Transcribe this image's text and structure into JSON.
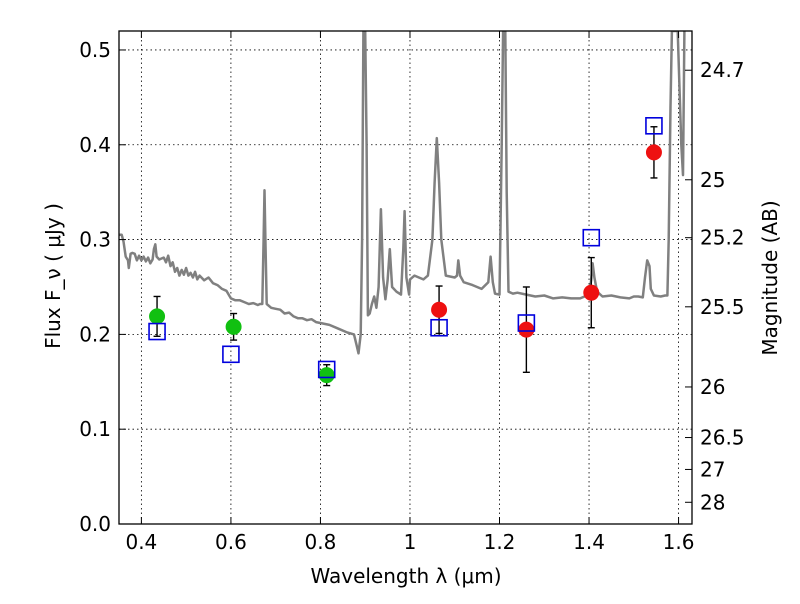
{
  "chart_data": {
    "type": "scatter",
    "xlabel": "Wavelength  λ (μm)",
    "ylabel": "Flux  F_ν  ( μJy )",
    "ylabel_right": "Magnitude (AB)",
    "xlim": [
      0.35,
      1.63
    ],
    "ylim": [
      0.0,
      0.52
    ],
    "grid": true,
    "x_ticks": [
      {
        "value": 0.4,
        "label": "0.4"
      },
      {
        "value": 0.6,
        "label": "0.6"
      },
      {
        "value": 0.8,
        "label": "0.8"
      },
      {
        "value": 1.0,
        "label": "1"
      },
      {
        "value": 1.2,
        "label": "1.2"
      },
      {
        "value": 1.4,
        "label": "1.4"
      },
      {
        "value": 1.6,
        "label": "1.6"
      }
    ],
    "y_ticks": [
      {
        "value": 0.0,
        "label": "0.0"
      },
      {
        "value": 0.1,
        "label": "0.1"
      },
      {
        "value": 0.2,
        "label": "0.2"
      },
      {
        "value": 0.3,
        "label": "0.3"
      },
      {
        "value": 0.4,
        "label": "0.4"
      },
      {
        "value": 0.5,
        "label": "0.5"
      }
    ],
    "right_ticks": [
      {
        "value": 24.7,
        "label": "24.7"
      },
      {
        "value": 25,
        "label": "25"
      },
      {
        "value": 25.2,
        "label": "25.2"
      },
      {
        "value": 25.5,
        "label": "25.5"
      },
      {
        "value": 26,
        "label": "26"
      },
      {
        "value": 26.5,
        "label": "26.5"
      },
      {
        "value": 27,
        "label": "27"
      },
      {
        "value": 28,
        "label": "28"
      }
    ],
    "sed_model": {
      "color": "#808080",
      "points": [
        [
          0.35,
          0.305
        ],
        [
          0.356,
          0.305
        ],
        [
          0.36,
          0.298
        ],
        [
          0.365,
          0.282
        ],
        [
          0.37,
          0.278
        ],
        [
          0.372,
          0.27
        ],
        [
          0.376,
          0.285
        ],
        [
          0.38,
          0.286
        ],
        [
          0.385,
          0.285
        ],
        [
          0.39,
          0.278
        ],
        [
          0.395,
          0.283
        ],
        [
          0.4,
          0.278
        ],
        [
          0.405,
          0.282
        ],
        [
          0.41,
          0.277
        ],
        [
          0.415,
          0.281
        ],
        [
          0.42,
          0.275
        ],
        [
          0.425,
          0.279
        ],
        [
          0.428,
          0.29
        ],
        [
          0.431,
          0.295
        ],
        [
          0.434,
          0.282
        ],
        [
          0.44,
          0.279
        ],
        [
          0.445,
          0.28
        ],
        [
          0.45,
          0.281
        ],
        [
          0.455,
          0.276
        ],
        [
          0.46,
          0.283
        ],
        [
          0.465,
          0.272
        ],
        [
          0.47,
          0.276
        ],
        [
          0.475,
          0.266
        ],
        [
          0.48,
          0.27
        ],
        [
          0.485,
          0.262
        ],
        [
          0.49,
          0.268
        ],
        [
          0.495,
          0.263
        ],
        [
          0.5,
          0.27
        ],
        [
          0.505,
          0.262
        ],
        [
          0.51,
          0.265
        ],
        [
          0.515,
          0.26
        ],
        [
          0.52,
          0.266
        ],
        [
          0.525,
          0.258
        ],
        [
          0.53,
          0.262
        ],
        [
          0.54,
          0.257
        ],
        [
          0.55,
          0.26
        ],
        [
          0.56,
          0.254
        ],
        [
          0.57,
          0.252
        ],
        [
          0.58,
          0.248
        ],
        [
          0.59,
          0.246
        ],
        [
          0.6,
          0.238
        ],
        [
          0.61,
          0.236
        ],
        [
          0.62,
          0.236
        ],
        [
          0.63,
          0.234
        ],
        [
          0.64,
          0.232
        ],
        [
          0.65,
          0.233
        ],
        [
          0.66,
          0.231
        ],
        [
          0.665,
          0.232
        ],
        [
          0.67,
          0.232
        ],
        [
          0.673,
          0.3
        ],
        [
          0.675,
          0.352
        ],
        [
          0.677,
          0.3
        ],
        [
          0.68,
          0.232
        ],
        [
          0.69,
          0.228
        ],
        [
          0.7,
          0.227
        ],
        [
          0.71,
          0.226
        ],
        [
          0.72,
          0.222
        ],
        [
          0.73,
          0.223
        ],
        [
          0.74,
          0.219
        ],
        [
          0.75,
          0.217
        ],
        [
          0.76,
          0.217
        ],
        [
          0.77,
          0.215
        ],
        [
          0.78,
          0.216
        ],
        [
          0.79,
          0.213
        ],
        [
          0.8,
          0.212
        ],
        [
          0.82,
          0.21
        ],
        [
          0.84,
          0.206
        ],
        [
          0.86,
          0.202
        ],
        [
          0.875,
          0.2
        ],
        [
          0.88,
          0.19
        ],
        [
          0.885,
          0.18
        ],
        [
          0.89,
          0.2
        ],
        [
          0.893,
          0.3
        ],
        [
          0.896,
          0.52
        ],
        [
          0.9,
          0.52
        ],
        [
          0.903,
          0.4
        ],
        [
          0.906,
          0.22
        ],
        [
          0.91,
          0.222
        ],
        [
          0.915,
          0.232
        ],
        [
          0.92,
          0.24
        ],
        [
          0.925,
          0.228
        ],
        [
          0.93,
          0.25
        ],
        [
          0.935,
          0.332
        ],
        [
          0.94,
          0.26
        ],
        [
          0.945,
          0.237
        ],
        [
          0.95,
          0.257
        ],
        [
          0.955,
          0.29
        ],
        [
          0.96,
          0.25
        ],
        [
          0.97,
          0.245
        ],
        [
          0.98,
          0.242
        ],
        [
          0.985,
          0.29
        ],
        [
          0.988,
          0.33
        ],
        [
          0.992,
          0.26
        ],
        [
          0.998,
          0.242
        ],
        [
          1.0,
          0.258
        ],
        [
          1.01,
          0.262
        ],
        [
          1.02,
          0.26
        ],
        [
          1.03,
          0.258
        ],
        [
          1.04,
          0.262
        ],
        [
          1.05,
          0.3
        ],
        [
          1.055,
          0.36
        ],
        [
          1.06,
          0.407
        ],
        [
          1.065,
          0.36
        ],
        [
          1.07,
          0.3
        ],
        [
          1.08,
          0.262
        ],
        [
          1.1,
          0.26
        ],
        [
          1.105,
          0.262
        ],
        [
          1.108,
          0.278
        ],
        [
          1.112,
          0.262
        ],
        [
          1.12,
          0.255
        ],
        [
          1.14,
          0.252
        ],
        [
          1.16,
          0.248
        ],
        [
          1.175,
          0.255
        ],
        [
          1.18,
          0.282
        ],
        [
          1.185,
          0.255
        ],
        [
          1.19,
          0.243
        ],
        [
          1.2,
          0.242
        ],
        [
          1.205,
          0.4
        ],
        [
          1.208,
          0.52
        ],
        [
          1.213,
          0.52
        ],
        [
          1.216,
          0.35
        ],
        [
          1.22,
          0.245
        ],
        [
          1.23,
          0.243
        ],
        [
          1.24,
          0.244
        ],
        [
          1.26,
          0.242
        ],
        [
          1.28,
          0.24
        ],
        [
          1.3,
          0.241
        ],
        [
          1.32,
          0.238
        ],
        [
          1.34,
          0.239
        ],
        [
          1.36,
          0.238
        ],
        [
          1.38,
          0.238
        ],
        [
          1.39,
          0.24
        ],
        [
          1.4,
          0.242
        ],
        [
          1.405,
          0.258
        ],
        [
          1.408,
          0.275
        ],
        [
          1.412,
          0.26
        ],
        [
          1.418,
          0.245
        ],
        [
          1.43,
          0.24
        ],
        [
          1.45,
          0.241
        ],
        [
          1.47,
          0.239
        ],
        [
          1.49,
          0.238
        ],
        [
          1.5,
          0.24
        ],
        [
          1.51,
          0.24
        ],
        [
          1.52,
          0.239
        ],
        [
          1.525,
          0.26
        ],
        [
          1.53,
          0.278
        ],
        [
          1.535,
          0.272
        ],
        [
          1.538,
          0.248
        ],
        [
          1.545,
          0.241
        ],
        [
          1.56,
          0.24
        ],
        [
          1.57,
          0.241
        ],
        [
          1.575,
          0.241
        ],
        [
          1.578,
          0.3
        ],
        [
          1.582,
          0.44
        ],
        [
          1.585,
          0.52
        ],
        [
          1.598,
          0.52
        ],
        [
          1.602,
          0.46
        ],
        [
          1.606,
          0.4
        ],
        [
          1.61,
          0.368
        ],
        [
          1.613,
          0.52
        ]
      ]
    },
    "series": [
      {
        "marker": "circle",
        "color": "#11c011",
        "points": [
          {
            "x": 0.435,
            "y": 0.219,
            "err": 0.021
          },
          {
            "x": 0.606,
            "y": 0.208,
            "err": 0.014
          },
          {
            "x": 0.814,
            "y": 0.157,
            "err": 0.011
          }
        ]
      },
      {
        "marker": "circle",
        "color": "#ee1111",
        "points": [
          {
            "x": 1.065,
            "y": 0.226,
            "err": 0.025
          },
          {
            "x": 1.26,
            "y": 0.205,
            "err": 0.045
          },
          {
            "x": 1.405,
            "y": 0.244,
            "err": 0.037
          },
          {
            "x": 1.545,
            "y": 0.392,
            "err": 0.027
          }
        ]
      },
      {
        "marker": "square-open",
        "color": "#0000dd",
        "points": [
          {
            "x": 0.435,
            "y": 0.203
          },
          {
            "x": 0.6,
            "y": 0.179
          },
          {
            "x": 0.814,
            "y": 0.163
          },
          {
            "x": 1.065,
            "y": 0.207
          },
          {
            "x": 1.26,
            "y": 0.212
          },
          {
            "x": 1.405,
            "y": 0.302
          },
          {
            "x": 1.545,
            "y": 0.42
          }
        ]
      }
    ]
  }
}
